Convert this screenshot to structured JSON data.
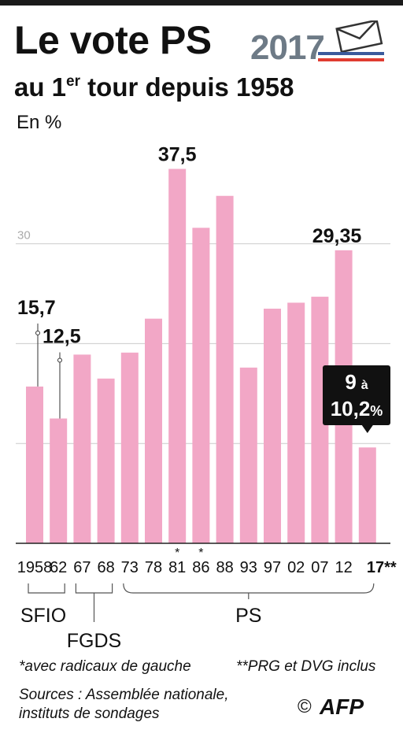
{
  "header": {
    "title": "Le vote PS",
    "subtitle_main": "au 1",
    "subtitle_sup": "er",
    "subtitle_rest": " tour depuis 1958",
    "unit": "En %",
    "year_badge": "2017"
  },
  "colors": {
    "bar": "#f2a7c6",
    "axis": "#222222",
    "grid": "#cccccc",
    "callout": "#111111",
    "flag_blue": "#3a5a9c",
    "flag_red": "#e03c31"
  },
  "chart_data": {
    "type": "bar",
    "categories": [
      "1958",
      "62",
      "67",
      "68",
      "73",
      "78",
      "81",
      "86",
      "88",
      "93",
      "97",
      "02",
      "07",
      "12",
      "17**"
    ],
    "markers": [
      "",
      "",
      "",
      "",
      "",
      "",
      "*",
      "*",
      "",
      "",
      "",
      "",
      "",
      "",
      ""
    ],
    "values": [
      15.7,
      12.5,
      18.9,
      16.5,
      19.1,
      22.5,
      37.5,
      31.6,
      34.8,
      17.6,
      23.5,
      24.1,
      24.7,
      29.35,
      9.6
    ],
    "data_labels": [
      "15,7",
      "12,5",
      "",
      "",
      "",
      "",
      "37,5",
      "",
      "",
      "",
      "",
      "",
      "",
      "29,35",
      ""
    ],
    "callout": {
      "line1": "9",
      "line1_small": "à",
      "line2": "10,2",
      "line2_small": "%"
    },
    "ytick_labels": [
      "30"
    ],
    "ytick_values": [
      30
    ],
    "ylim": [
      0,
      40
    ],
    "grid": true,
    "groups": [
      {
        "label": "SFIO",
        "from": 0,
        "to": 1
      },
      {
        "label": "FGDS",
        "from": 2,
        "to": 3
      },
      {
        "label": "PS",
        "from": 4,
        "to": 14
      }
    ]
  },
  "footnotes": {
    "radicaux": "*avec radicaux de gauche",
    "prg": "**PRG et DVG inclus",
    "sources_1": "Sources : Assemblée nationale,",
    "sources_2": "instituts de sondages",
    "copyright": "©",
    "afp": "AFP"
  }
}
